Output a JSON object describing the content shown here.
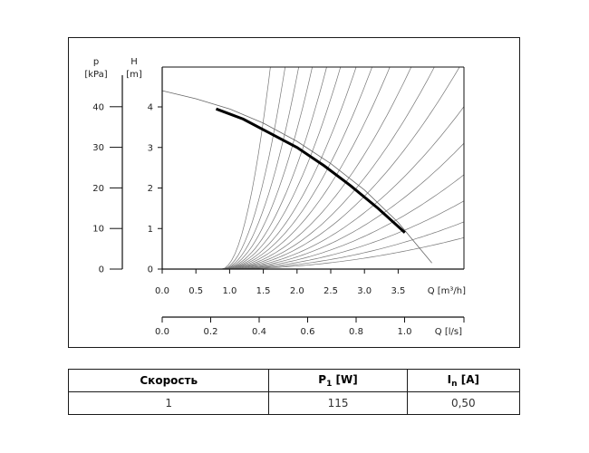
{
  "chart_data": {
    "type": "line",
    "axes": {
      "q_m3h": {
        "label": "Q [m³/h]",
        "ticks": [
          "0.0",
          "0.5",
          "1.0",
          "1.5",
          "2.0",
          "2.5",
          "3.0",
          "3.5"
        ],
        "range": [
          0,
          4.5
        ]
      },
      "q_ls": {
        "label": "Q [l/s]",
        "ticks": [
          "0.0",
          "0.2",
          "0.4",
          "0.6",
          "0.8",
          "1.0"
        ],
        "range": [
          0,
          1.25
        ]
      },
      "h": {
        "symbol": "H",
        "unit": "[m]",
        "ticks": [
          "0",
          "1",
          "2",
          "3",
          "4"
        ],
        "range": [
          0,
          5
        ]
      },
      "p": {
        "symbol": "p",
        "unit": "[kPa]",
        "ticks": [
          "0",
          "10",
          "20",
          "30",
          "40"
        ],
        "range": [
          0,
          49
        ]
      }
    },
    "series": [
      {
        "x": [
          0.8,
          1.2,
          1.6,
          2.0,
          2.4,
          2.8,
          3.2,
          3.6
        ],
        "y": [
          3.95,
          3.7,
          3.35,
          3.0,
          2.55,
          2.05,
          1.5,
          0.9
        ]
      }
    ],
    "max_curve": {
      "x": [
        0.0,
        0.5,
        1.0,
        1.5,
        2.0,
        2.5,
        3.0,
        3.5,
        4.0
      ],
      "y": [
        4.4,
        4.2,
        3.95,
        3.6,
        3.15,
        2.6,
        1.95,
        1.15,
        0.15
      ]
    },
    "grid": false
  },
  "table": {
    "headers": {
      "speed": "Скорость",
      "p1_main": "P",
      "p1_sub": "1",
      "p1_unit": " [W]",
      "in_main": "I",
      "in_sub": "n",
      "in_unit": " [A]"
    },
    "rows": [
      {
        "speed": "1",
        "p1": "115",
        "in": "0,50"
      }
    ]
  }
}
